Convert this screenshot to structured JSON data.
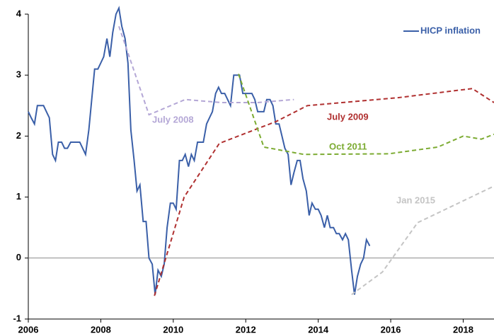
{
  "chart_data": {
    "type": "line",
    "xlim": [
      2006,
      2018.85
    ],
    "xticks": [
      2006,
      2008,
      2010,
      2012,
      2014,
      2016,
      2018
    ],
    "ylim": [
      -1,
      4
    ],
    "yticks": [
      -1,
      0,
      1,
      2,
      3,
      4
    ],
    "legend": "top-right",
    "series": [
      {
        "name": "HICP inflation",
        "color": "#3a5fa8",
        "style": "solid",
        "x": [
          2006.0,
          2006.08,
          2006.17,
          2006.25,
          2006.33,
          2006.42,
          2006.5,
          2006.58,
          2006.67,
          2006.75,
          2006.83,
          2006.92,
          2007.0,
          2007.08,
          2007.17,
          2007.25,
          2007.33,
          2007.42,
          2007.5,
          2007.58,
          2007.67,
          2007.75,
          2007.83,
          2007.92,
          2008.0,
          2008.08,
          2008.17,
          2008.25,
          2008.33,
          2008.42,
          2008.5,
          2008.58,
          2008.67,
          2008.75,
          2008.83,
          2008.92,
          2009.0,
          2009.08,
          2009.17,
          2009.25,
          2009.33,
          2009.42,
          2009.5,
          2009.58,
          2009.67,
          2009.75,
          2009.83,
          2009.92,
          2010.0,
          2010.08,
          2010.17,
          2010.25,
          2010.33,
          2010.42,
          2010.5,
          2010.58,
          2010.67,
          2010.75,
          2010.83,
          2010.92,
          2011.0,
          2011.08,
          2011.17,
          2011.25,
          2011.33,
          2011.42,
          2011.5,
          2011.58,
          2011.67,
          2011.75,
          2011.83,
          2011.92,
          2012.0,
          2012.08,
          2012.17,
          2012.25,
          2012.33,
          2012.42,
          2012.5,
          2012.58,
          2012.67,
          2012.75,
          2012.83,
          2012.92,
          2013.0,
          2013.08,
          2013.17,
          2013.25,
          2013.33,
          2013.42,
          2013.5,
          2013.58,
          2013.67,
          2013.75,
          2013.83,
          2013.92,
          2014.0,
          2014.08,
          2014.17,
          2014.25,
          2014.33,
          2014.42,
          2014.5,
          2014.58,
          2014.67,
          2014.75,
          2014.83,
          2014.92,
          2015.0,
          2015.08,
          2015.17,
          2015.25,
          2015.33,
          2015.42
        ],
        "values": [
          2.4,
          2.3,
          2.2,
          2.5,
          2.5,
          2.5,
          2.4,
          2.3,
          1.7,
          1.6,
          1.9,
          1.9,
          1.8,
          1.8,
          1.9,
          1.9,
          1.9,
          1.9,
          1.8,
          1.7,
          2.1,
          2.6,
          3.1,
          3.1,
          3.2,
          3.3,
          3.6,
          3.3,
          3.7,
          4.0,
          4.1,
          3.8,
          3.6,
          3.2,
          2.1,
          1.6,
          1.1,
          1.2,
          0.6,
          0.6,
          0.0,
          -0.1,
          -0.6,
          -0.2,
          -0.3,
          -0.1,
          0.5,
          0.9,
          0.9,
          0.8,
          1.6,
          1.6,
          1.7,
          1.5,
          1.7,
          1.6,
          1.9,
          1.9,
          1.9,
          2.2,
          2.3,
          2.4,
          2.7,
          2.8,
          2.7,
          2.7,
          2.6,
          2.5,
          3.0,
          3.0,
          3.0,
          2.7,
          2.7,
          2.7,
          2.7,
          2.6,
          2.4,
          2.4,
          2.4,
          2.6,
          2.6,
          2.5,
          2.2,
          2.2,
          2.0,
          1.8,
          1.7,
          1.2,
          1.4,
          1.6,
          1.6,
          1.3,
          1.1,
          0.7,
          0.9,
          0.8,
          0.8,
          0.7,
          0.5,
          0.7,
          0.5,
          0.5,
          0.4,
          0.4,
          0.3,
          0.4,
          0.3,
          -0.2,
          -0.6,
          -0.3,
          -0.1,
          0.0,
          0.3,
          0.2
        ]
      },
      {
        "name": "July 2008",
        "color": "#b4a7d6",
        "style": "dashed",
        "x": [
          2008.5,
          2009.33,
          2010.33,
          2011.33,
          2012.33,
          2013.33
        ],
        "values": [
          3.8,
          2.35,
          2.6,
          2.55,
          2.55,
          2.6
        ]
      },
      {
        "name": "July 2009",
        "color": "#b03030",
        "style": "dashed",
        "x": [
          2009.48,
          2010.3,
          2011.27,
          2012.84,
          2013.7,
          2016.2,
          2018.25,
          2018.85
        ],
        "values": [
          -0.62,
          1.0,
          1.88,
          2.24,
          2.5,
          2.63,
          2.78,
          2.55
        ]
      },
      {
        "name": "Oct 2011",
        "color": "#7cab32",
        "style": "dashed",
        "x": [
          2011.8,
          2012.5,
          2013.6,
          2015.95,
          2017.3,
          2018.0,
          2018.5,
          2018.85
        ],
        "values": [
          3.02,
          1.82,
          1.7,
          1.71,
          1.82,
          2.0,
          1.95,
          2.03
        ]
      },
      {
        "name": "Jan 2015",
        "color": "#c4c4c4",
        "style": "dashed",
        "x": [
          2014.92,
          2015.77,
          2016.74,
          2018.85
        ],
        "values": [
          -0.6,
          -0.23,
          0.58,
          1.18
        ]
      }
    ]
  }
}
